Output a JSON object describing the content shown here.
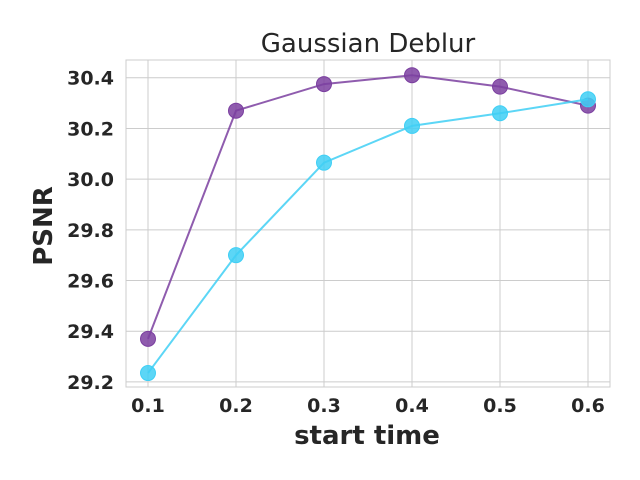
{
  "chart_data": {
    "type": "line",
    "title": "Gaussian Deblur",
    "xlabel": "start time",
    "ylabel": "PSNR",
    "x": [
      0.1,
      0.2,
      0.3,
      0.4,
      0.5,
      0.6
    ],
    "x_ticks": [
      "0.1",
      "0.2",
      "0.3",
      "0.4",
      "0.5",
      "0.6"
    ],
    "y_ticks": [
      "29.2",
      "29.4",
      "29.6",
      "29.8",
      "30.0",
      "30.2",
      "30.4"
    ],
    "y_tick_values": [
      29.2,
      29.4,
      29.6,
      29.8,
      30.0,
      30.2,
      30.4
    ],
    "xlim": [
      0.075,
      0.625
    ],
    "ylim": [
      29.18,
      30.47
    ],
    "grid": true,
    "series": [
      {
        "color": "#7b3fa0",
        "values": [
          29.37,
          30.27,
          30.375,
          30.41,
          30.365,
          30.29
        ]
      },
      {
        "color": "#3fcff5",
        "values": [
          29.235,
          29.7,
          30.065,
          30.21,
          30.26,
          30.315
        ]
      }
    ]
  }
}
